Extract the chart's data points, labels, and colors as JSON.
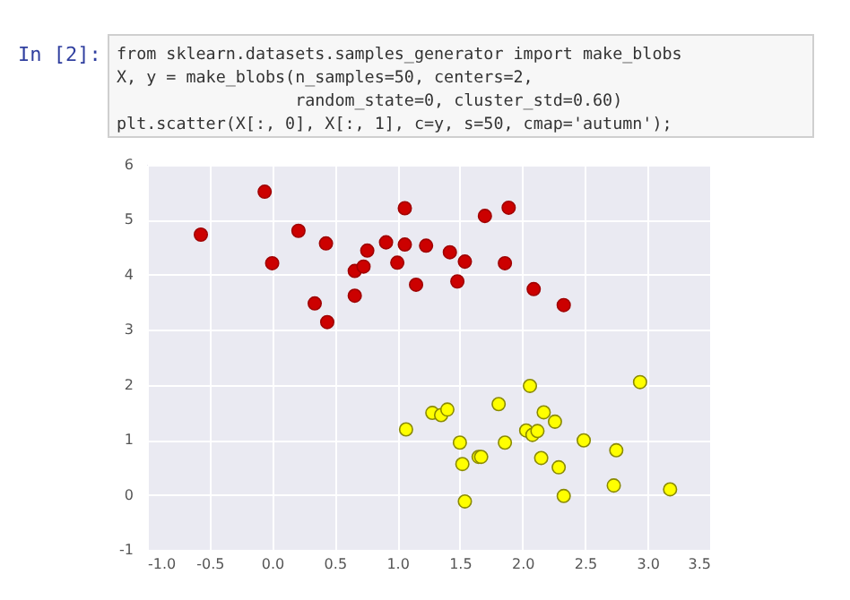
{
  "chart_data": {
    "type": "scatter",
    "annotations": [
      "In [2]:",
      "from sklearn.datasets.samples_generator import make_blobs",
      "X, y = make_blobs(n_samples=50, centers=2,",
      "                  random_state=0, cluster_std=0.60)",
      "plt.scatter(X[:, 0], X[:, 1], c=y, s=50, cmap='autumn');"
    ],
    "series": [
      {
        "color": "#cc0000",
        "x": [
          -0.57,
          -0.06,
          0.0,
          0.21,
          0.43,
          0.34,
          0.44,
          0.66,
          0.66,
          0.73,
          0.76,
          0.91,
          1.06,
          1.0,
          1.06,
          1.15,
          1.23,
          1.42,
          1.48,
          1.54,
          1.7,
          1.89,
          1.86,
          2.09,
          2.33
        ],
        "values": [
          4.73,
          5.51,
          4.21,
          4.8,
          4.57,
          3.48,
          3.14,
          4.07,
          3.62,
          4.15,
          4.44,
          4.59,
          5.21,
          4.22,
          4.55,
          3.82,
          4.53,
          4.41,
          3.88,
          4.24,
          5.07,
          5.22,
          4.21,
          3.74,
          3.45
        ]
      },
      {
        "color": "#ffff00",
        "x": [
          1.07,
          1.28,
          1.35,
          1.4,
          1.5,
          1.52,
          1.54,
          1.65,
          1.67,
          1.81,
          1.86,
          2.06,
          2.03,
          2.08,
          2.12,
          2.17,
          2.26,
          2.15,
          2.29,
          2.33,
          2.49,
          2.75,
          2.73,
          2.94,
          3.18
        ],
        "values": [
          1.19,
          1.49,
          1.45,
          1.55,
          0.95,
          0.56,
          -0.12,
          0.69,
          0.69,
          1.65,
          0.95,
          1.98,
          1.17,
          1.09,
          1.16,
          1.5,
          1.33,
          0.67,
          0.5,
          -0.02,
          0.99,
          0.81,
          0.17,
          2.05,
          0.1
        ]
      }
    ],
    "xlim": [
      -1,
      3.5
    ],
    "xticks": [
      {
        "value": -1,
        "label": "-1.0"
      },
      {
        "value": -0.5,
        "label": "-0.5"
      },
      {
        "value": 0,
        "label": "0.0"
      },
      {
        "value": 0.5,
        "label": "0.5"
      },
      {
        "value": 1,
        "label": "1.0"
      },
      {
        "value": 1.5,
        "label": "1.5"
      },
      {
        "value": 2,
        "label": "2.0"
      },
      {
        "value": 2.5,
        "label": "2.5"
      },
      {
        "value": 3,
        "label": "3.0"
      },
      {
        "value": 3.5,
        "label": "3.5"
      }
    ],
    "ylim": [
      -1,
      6
    ],
    "yticks": [
      -1,
      0,
      1,
      2,
      3,
      4,
      5,
      6
    ],
    "grid": true,
    "marker": "circle"
  }
}
